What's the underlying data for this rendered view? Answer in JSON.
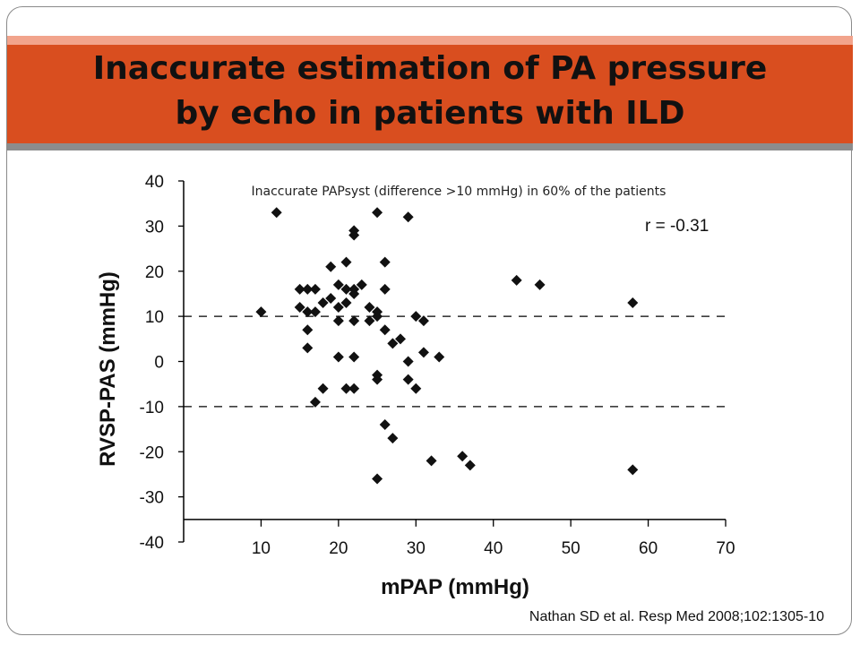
{
  "slide": {
    "title_line1": "Inaccurate estimation of PA pressure",
    "title_line2": "by echo in patients with ILD",
    "citation": "Nathan SD et al. Resp Med 2008;102:1305-10",
    "colors": {
      "title_band": "#d94e1f",
      "title_stripe": "#f2a48c",
      "divider": "#8c8c8c"
    }
  },
  "chart_data": {
    "type": "scatter",
    "title": "",
    "annotation": "Inaccurate PAPsyst (difference >10 mmHg) in 60% of the patients",
    "correlation_label": "r = -0.31",
    "xlabel": "mPAP (mmHg)",
    "ylabel": "RVSP-PAS (mmHg)",
    "xlim": [
      0,
      70
    ],
    "ylim": [
      -40,
      40
    ],
    "xticks": [
      10,
      20,
      30,
      40,
      50,
      60,
      70
    ],
    "yticks": [
      40,
      30,
      20,
      10,
      0,
      -10,
      -20,
      -30,
      -40
    ],
    "reference_lines": [
      10,
      -10
    ],
    "grid": false,
    "marker": "diamond",
    "marker_color": "#111111",
    "points": [
      [
        12,
        33
      ],
      [
        10,
        11
      ],
      [
        15,
        16
      ],
      [
        16,
        16
      ],
      [
        17,
        16
      ],
      [
        15,
        12
      ],
      [
        16,
        11
      ],
      [
        17,
        11
      ],
      [
        16,
        7
      ],
      [
        16,
        3
      ],
      [
        18,
        13
      ],
      [
        19,
        14
      ],
      [
        20,
        12
      ],
      [
        19,
        21
      ],
      [
        20,
        17
      ],
      [
        21,
        16
      ],
      [
        20,
        9
      ],
      [
        21,
        13
      ],
      [
        22,
        16
      ],
      [
        21,
        22
      ],
      [
        22,
        28
      ],
      [
        22,
        29
      ],
      [
        22,
        15
      ],
      [
        23,
        17
      ],
      [
        22,
        9
      ],
      [
        20,
        1
      ],
      [
        22,
        1
      ],
      [
        21,
        -6
      ],
      [
        22,
        -6
      ],
      [
        18,
        -6
      ],
      [
        17,
        -9
      ],
      [
        24,
        12
      ],
      [
        24,
        9
      ],
      [
        25,
        10
      ],
      [
        25,
        11
      ],
      [
        26,
        16
      ],
      [
        26,
        22
      ],
      [
        25,
        33
      ],
      [
        26,
        7
      ],
      [
        27,
        4
      ],
      [
        28,
        5
      ],
      [
        29,
        32
      ],
      [
        30,
        10
      ],
      [
        31,
        9
      ],
      [
        29,
        0
      ],
      [
        31,
        2
      ],
      [
        33,
        1
      ],
      [
        29,
        -4
      ],
      [
        30,
        -6
      ],
      [
        25,
        -3
      ],
      [
        25,
        -4
      ],
      [
        26,
        -14
      ],
      [
        27,
        -17
      ],
      [
        25,
        -26
      ],
      [
        32,
        -22
      ],
      [
        36,
        -21
      ],
      [
        37,
        -23
      ],
      [
        43,
        18
      ],
      [
        46,
        17
      ],
      [
        58,
        13
      ],
      [
        58,
        -24
      ]
    ]
  }
}
